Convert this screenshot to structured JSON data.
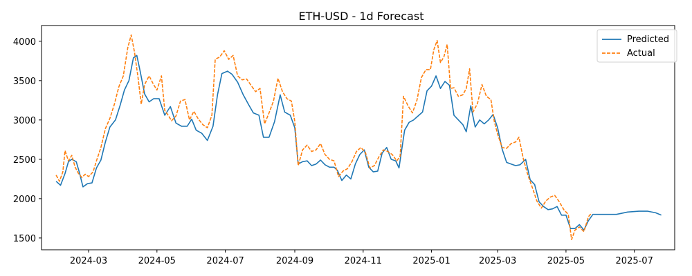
{
  "chart_data": {
    "type": "line",
    "title": "ETH-USD - 1d Forecast",
    "xlabel": "",
    "ylabel": "",
    "xlim": [
      "2024-01-19",
      "2025-08-06"
    ],
    "ylim": [
      1350,
      4200
    ],
    "x_ticks": [
      "2024-03",
      "2024-05",
      "2024-07",
      "2024-09",
      "2024-11",
      "2025-01",
      "2025-03",
      "2025-05",
      "2025-07"
    ],
    "y_ticks": [
      1500,
      2000,
      2500,
      3000,
      3500,
      4000
    ],
    "grid": false,
    "legend_position": "top-right",
    "series": [
      {
        "name": "Predicted",
        "color": "#1f77b4",
        "style": "solid",
        "points": [
          [
            "2024-02-01",
            2220
          ],
          [
            "2024-02-05",
            2170
          ],
          [
            "2024-02-09",
            2320
          ],
          [
            "2024-02-12",
            2470
          ],
          [
            "2024-02-15",
            2500
          ],
          [
            "2024-02-19",
            2470
          ],
          [
            "2024-02-22",
            2320
          ],
          [
            "2024-02-25",
            2150
          ],
          [
            "2024-02-29",
            2190
          ],
          [
            "2024-03-04",
            2200
          ],
          [
            "2024-03-08",
            2390
          ],
          [
            "2024-03-12",
            2490
          ],
          [
            "2024-03-16",
            2720
          ],
          [
            "2024-03-20",
            2910
          ],
          [
            "2024-03-25",
            3000
          ],
          [
            "2024-03-29",
            3180
          ],
          [
            "2024-04-02",
            3380
          ],
          [
            "2024-04-06",
            3500
          ],
          [
            "2024-04-10",
            3790
          ],
          [
            "2024-04-13",
            3820
          ],
          [
            "2024-04-16",
            3620
          ],
          [
            "2024-04-20",
            3330
          ],
          [
            "2024-04-24",
            3230
          ],
          [
            "2024-04-28",
            3270
          ],
          [
            "2024-05-03",
            3270
          ],
          [
            "2024-05-08",
            3060
          ],
          [
            "2024-05-13",
            3170
          ],
          [
            "2024-05-18",
            2960
          ],
          [
            "2024-05-23",
            2920
          ],
          [
            "2024-05-28",
            2920
          ],
          [
            "2024-06-01",
            3010
          ],
          [
            "2024-06-05",
            2870
          ],
          [
            "2024-06-10",
            2830
          ],
          [
            "2024-06-15",
            2740
          ],
          [
            "2024-06-20",
            2920
          ],
          [
            "2024-06-24",
            3320
          ],
          [
            "2024-06-28",
            3590
          ],
          [
            "2024-07-03",
            3620
          ],
          [
            "2024-07-07",
            3580
          ],
          [
            "2024-07-12",
            3480
          ],
          [
            "2024-07-17",
            3320
          ],
          [
            "2024-07-22",
            3190
          ],
          [
            "2024-07-26",
            3090
          ],
          [
            "2024-07-31",
            3060
          ],
          [
            "2024-08-04",
            2780
          ],
          [
            "2024-08-09",
            2780
          ],
          [
            "2024-08-14",
            2980
          ],
          [
            "2024-08-19",
            3320
          ],
          [
            "2024-08-23",
            3100
          ],
          [
            "2024-08-28",
            3060
          ],
          [
            "2024-09-01",
            2900
          ],
          [
            "2024-09-04",
            2440
          ],
          [
            "2024-09-08",
            2470
          ],
          [
            "2024-09-12",
            2480
          ],
          [
            "2024-09-16",
            2420
          ],
          [
            "2024-09-20",
            2440
          ],
          [
            "2024-09-24",
            2490
          ],
          [
            "2024-09-28",
            2430
          ],
          [
            "2024-10-02",
            2400
          ],
          [
            "2024-10-06",
            2400
          ],
          [
            "2024-10-09",
            2360
          ],
          [
            "2024-10-13",
            2230
          ],
          [
            "2024-10-17",
            2300
          ],
          [
            "2024-10-21",
            2250
          ],
          [
            "2024-10-25",
            2440
          ],
          [
            "2024-10-29",
            2560
          ],
          [
            "2024-11-02",
            2620
          ],
          [
            "2024-11-06",
            2400
          ],
          [
            "2024-11-10",
            2340
          ],
          [
            "2024-11-14",
            2350
          ],
          [
            "2024-11-18",
            2580
          ],
          [
            "2024-11-22",
            2650
          ],
          [
            "2024-11-26",
            2500
          ],
          [
            "2024-11-30",
            2480
          ],
          [
            "2024-12-03",
            2390
          ],
          [
            "2024-12-08",
            2870
          ],
          [
            "2024-12-12",
            2970
          ],
          [
            "2024-12-16",
            3000
          ],
          [
            "2024-12-20",
            3050
          ],
          [
            "2024-12-24",
            3100
          ],
          [
            "2024-12-28",
            3370
          ],
          [
            "2025-01-01",
            3430
          ],
          [
            "2025-01-05",
            3560
          ],
          [
            "2025-01-09",
            3400
          ],
          [
            "2025-01-13",
            3490
          ],
          [
            "2025-01-17",
            3440
          ],
          [
            "2025-01-21",
            3060
          ],
          [
            "2025-01-25",
            3000
          ],
          [
            "2025-01-29",
            2940
          ],
          [
            "2025-02-01",
            2850
          ],
          [
            "2025-02-05",
            3180
          ],
          [
            "2025-02-09",
            2910
          ],
          [
            "2025-02-13",
            3000
          ],
          [
            "2025-02-17",
            2950
          ],
          [
            "2025-02-21",
            3000
          ],
          [
            "2025-02-25",
            3070
          ],
          [
            "2025-03-01",
            2900
          ],
          [
            "2025-03-05",
            2630
          ],
          [
            "2025-03-09",
            2460
          ],
          [
            "2025-03-13",
            2440
          ],
          [
            "2025-03-17",
            2420
          ],
          [
            "2025-03-21",
            2430
          ],
          [
            "2025-03-26",
            2500
          ],
          [
            "2025-03-30",
            2240
          ],
          [
            "2025-04-03",
            2180
          ],
          [
            "2025-04-07",
            1960
          ],
          [
            "2025-04-11",
            1900
          ],
          [
            "2025-04-15",
            1860
          ],
          [
            "2025-04-19",
            1870
          ],
          [
            "2025-04-23",
            1900
          ],
          [
            "2025-04-27",
            1790
          ],
          [
            "2025-05-01",
            1790
          ],
          [
            "2025-05-05",
            1620
          ],
          [
            "2025-05-09",
            1620
          ],
          [
            "2025-05-13",
            1670
          ],
          [
            "2025-05-17",
            1600
          ],
          [
            "2025-05-21",
            1720
          ],
          [
            "2025-05-25",
            1800
          ],
          [
            "2025-06-05",
            1800
          ],
          [
            "2025-06-15",
            1800
          ],
          [
            "2025-06-25",
            1830
          ],
          [
            "2025-07-05",
            1840
          ],
          [
            "2025-07-13",
            1840
          ],
          [
            "2025-07-20",
            1820
          ],
          [
            "2025-07-25",
            1790
          ]
        ]
      },
      {
        "name": "Actual",
        "color": "#ff7f0e",
        "style": "dashed",
        "points": [
          [
            "2024-02-01",
            2300
          ],
          [
            "2024-02-04",
            2220
          ],
          [
            "2024-02-07",
            2340
          ],
          [
            "2024-02-09",
            2610
          ],
          [
            "2024-02-12",
            2480
          ],
          [
            "2024-02-15",
            2550
          ],
          [
            "2024-02-18",
            2400
          ],
          [
            "2024-02-21",
            2320
          ],
          [
            "2024-02-24",
            2270
          ],
          [
            "2024-02-27",
            2310
          ],
          [
            "2024-03-01",
            2280
          ],
          [
            "2024-03-05",
            2340
          ],
          [
            "2024-03-08",
            2480
          ],
          [
            "2024-03-12",
            2650
          ],
          [
            "2024-03-16",
            2890
          ],
          [
            "2024-03-20",
            3020
          ],
          [
            "2024-03-24",
            3200
          ],
          [
            "2024-03-28",
            3420
          ],
          [
            "2024-04-01",
            3560
          ],
          [
            "2024-04-05",
            3920
          ],
          [
            "2024-04-08",
            4080
          ],
          [
            "2024-04-11",
            3860
          ],
          [
            "2024-04-14",
            3550
          ],
          [
            "2024-04-17",
            3200
          ],
          [
            "2024-04-20",
            3450
          ],
          [
            "2024-04-24",
            3560
          ],
          [
            "2024-04-28",
            3450
          ],
          [
            "2024-05-01",
            3380
          ],
          [
            "2024-05-05",
            3560
          ],
          [
            "2024-05-08",
            3120
          ],
          [
            "2024-05-11",
            3060
          ],
          [
            "2024-05-14",
            2990
          ],
          [
            "2024-05-18",
            3050
          ],
          [
            "2024-05-22",
            3240
          ],
          [
            "2024-05-26",
            3260
          ],
          [
            "2024-05-30",
            3000
          ],
          [
            "2024-06-03",
            3110
          ],
          [
            "2024-06-07",
            3010
          ],
          [
            "2024-06-11",
            2940
          ],
          [
            "2024-06-15",
            2900
          ],
          [
            "2024-06-19",
            3060
          ],
          [
            "2024-06-22",
            3770
          ],
          [
            "2024-06-26",
            3800
          ],
          [
            "2024-06-30",
            3880
          ],
          [
            "2024-07-04",
            3770
          ],
          [
            "2024-07-08",
            3820
          ],
          [
            "2024-07-12",
            3560
          ],
          [
            "2024-07-16",
            3510
          ],
          [
            "2024-07-20",
            3520
          ],
          [
            "2024-07-24",
            3440
          ],
          [
            "2024-07-28",
            3360
          ],
          [
            "2024-08-01",
            3400
          ],
          [
            "2024-08-05",
            2950
          ],
          [
            "2024-08-09",
            3090
          ],
          [
            "2024-08-13",
            3240
          ],
          [
            "2024-08-17",
            3530
          ],
          [
            "2024-08-21",
            3360
          ],
          [
            "2024-08-25",
            3270
          ],
          [
            "2024-08-29",
            3240
          ],
          [
            "2024-09-01",
            2980
          ],
          [
            "2024-09-04",
            2420
          ],
          [
            "2024-09-08",
            2620
          ],
          [
            "2024-09-12",
            2680
          ],
          [
            "2024-09-16",
            2600
          ],
          [
            "2024-09-20",
            2620
          ],
          [
            "2024-09-24",
            2700
          ],
          [
            "2024-09-28",
            2560
          ],
          [
            "2024-10-02",
            2500
          ],
          [
            "2024-10-06",
            2480
          ],
          [
            "2024-10-10",
            2280
          ],
          [
            "2024-10-14",
            2350
          ],
          [
            "2024-10-18",
            2380
          ],
          [
            "2024-10-22",
            2470
          ],
          [
            "2024-10-26",
            2600
          ],
          [
            "2024-10-30",
            2650
          ],
          [
            "2024-11-03",
            2590
          ],
          [
            "2024-11-07",
            2390
          ],
          [
            "2024-11-11",
            2420
          ],
          [
            "2024-11-15",
            2530
          ],
          [
            "2024-11-19",
            2620
          ],
          [
            "2024-11-23",
            2600
          ],
          [
            "2024-11-27",
            2560
          ],
          [
            "2024-12-01",
            2480
          ],
          [
            "2024-12-04",
            2540
          ],
          [
            "2024-12-07",
            3300
          ],
          [
            "2024-12-11",
            3180
          ],
          [
            "2024-12-15",
            3090
          ],
          [
            "2024-12-19",
            3250
          ],
          [
            "2024-12-23",
            3540
          ],
          [
            "2024-12-27",
            3640
          ],
          [
            "2024-12-31",
            3640
          ],
          [
            "2025-01-03",
            3890
          ],
          [
            "2025-01-06",
            4010
          ],
          [
            "2025-01-09",
            3730
          ],
          [
            "2025-01-12",
            3800
          ],
          [
            "2025-01-15",
            3960
          ],
          [
            "2025-01-18",
            3400
          ],
          [
            "2025-01-21",
            3410
          ],
          [
            "2025-01-25",
            3300
          ],
          [
            "2025-01-29",
            3320
          ],
          [
            "2025-02-01",
            3400
          ],
          [
            "2025-02-04",
            3650
          ],
          [
            "2025-02-07",
            3100
          ],
          [
            "2025-02-11",
            3210
          ],
          [
            "2025-02-15",
            3450
          ],
          [
            "2025-02-19",
            3300
          ],
          [
            "2025-02-23",
            3260
          ],
          [
            "2025-02-26",
            2980
          ],
          [
            "2025-03-01",
            2820
          ],
          [
            "2025-03-05",
            2650
          ],
          [
            "2025-03-09",
            2640
          ],
          [
            "2025-03-13",
            2700
          ],
          [
            "2025-03-17",
            2720
          ],
          [
            "2025-03-20",
            2780
          ],
          [
            "2025-03-24",
            2500
          ],
          [
            "2025-03-28",
            2300
          ],
          [
            "2025-04-01",
            2140
          ],
          [
            "2025-04-05",
            1970
          ],
          [
            "2025-04-09",
            1880
          ],
          [
            "2025-04-13",
            1970
          ],
          [
            "2025-04-17",
            2020
          ],
          [
            "2025-04-21",
            2040
          ],
          [
            "2025-04-25",
            1960
          ],
          [
            "2025-04-29",
            1860
          ],
          [
            "2025-05-03",
            1800
          ],
          [
            "2025-05-06",
            1480
          ],
          [
            "2025-05-09",
            1600
          ],
          [
            "2025-05-13",
            1640
          ],
          [
            "2025-05-17",
            1580
          ],
          [
            "2025-05-21",
            1770
          ],
          [
            "2025-05-24",
            1820
          ]
        ]
      }
    ]
  }
}
